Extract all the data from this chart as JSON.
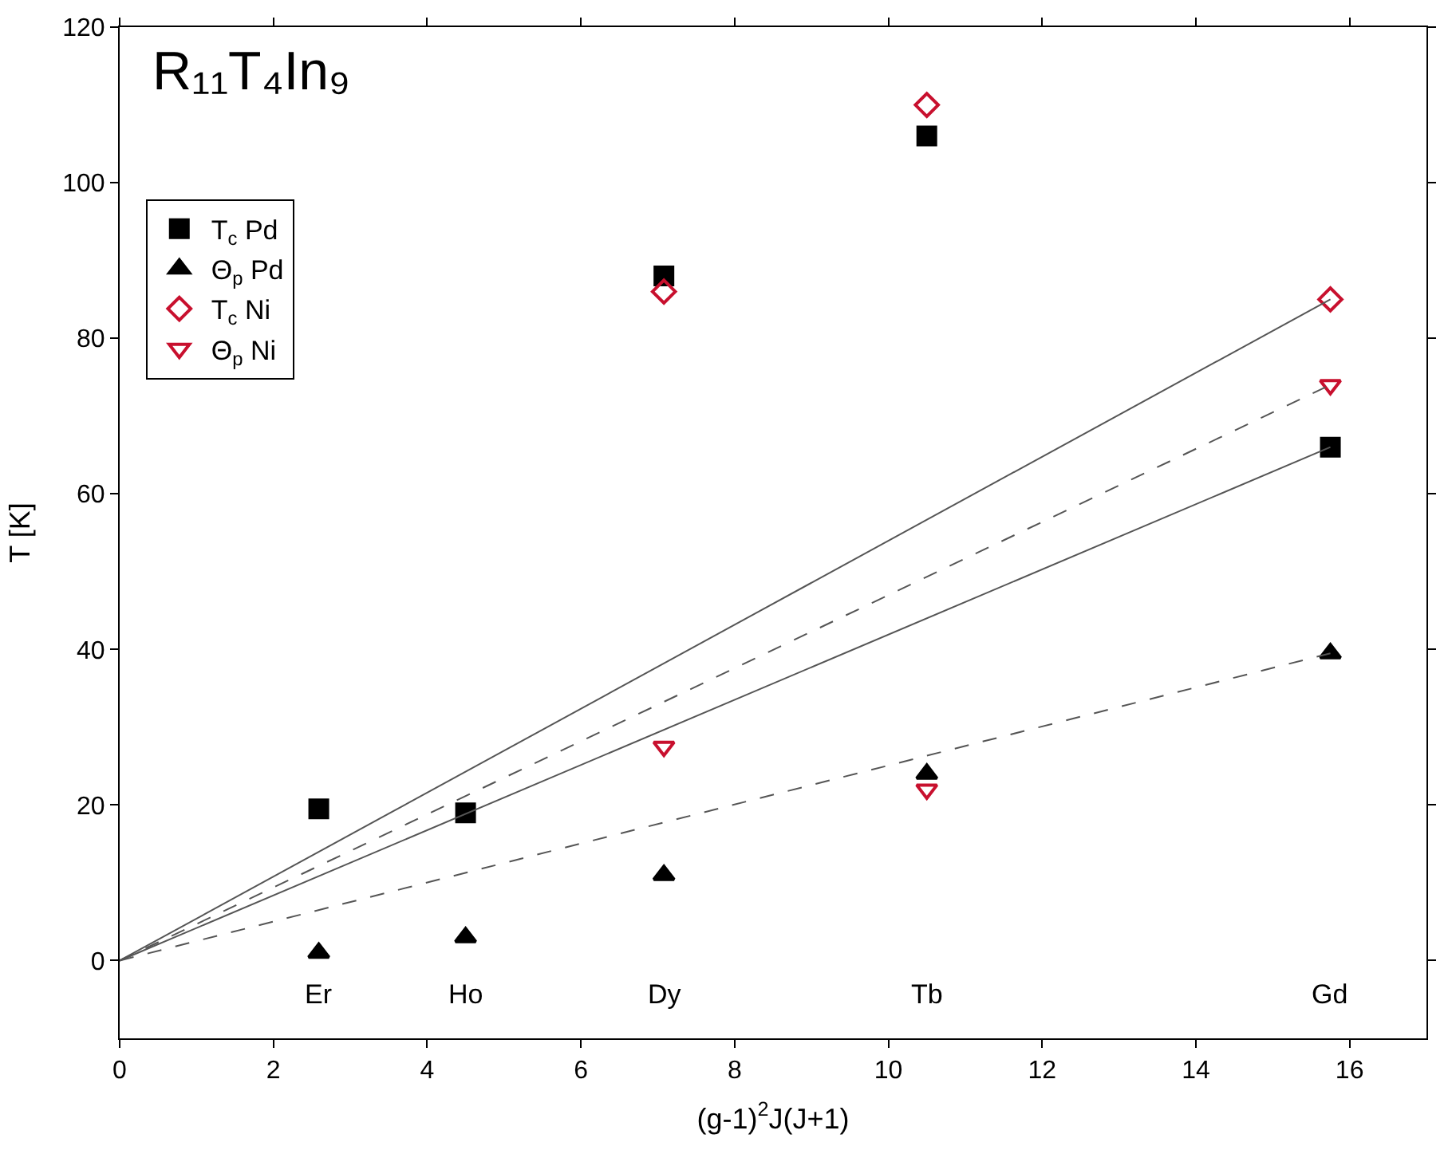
{
  "chart_data": {
    "type": "scatter",
    "title": "R₁₁T₄In₉",
    "xlabel": "(g-1)$^{2}$J(J+1)",
    "ylabel": "T [K]",
    "xlim": [
      0,
      17
    ],
    "ylim": [
      -10,
      120
    ],
    "xticks": [
      0,
      2,
      4,
      6,
      8,
      10,
      12,
      14,
      16
    ],
    "yticks": [
      0,
      20,
      40,
      60,
      80,
      100,
      120
    ],
    "legend": "top left",
    "series": [
      {
        "name": "T$_{c}$ Pd",
        "color": "#000000",
        "marker": "square",
        "x": [
          2.59,
          4.5,
          7.08,
          10.5,
          15.75
        ],
        "values": [
          19.5,
          19,
          88,
          106,
          66
        ]
      },
      {
        "name": "Θ$_{p}$ Pd",
        "color": "#000000",
        "marker": "triangle",
        "x": [
          2.59,
          4.5,
          7.08,
          10.5,
          15.75
        ],
        "values": [
          1,
          3,
          11,
          24,
          39.5
        ]
      },
      {
        "name": "T$_{c}$ Ni",
        "color": "#c8102e",
        "marker": "diamond",
        "x": [
          7.08,
          10.5,
          15.75
        ],
        "values": [
          86,
          110,
          85
        ]
      },
      {
        "name": "Θ$_{p}$ Ni",
        "color": "#c8102e",
        "marker": "triangle-down",
        "x": [
          7.08,
          10.5,
          15.75
        ],
        "values": [
          27.5,
          22,
          74
        ]
      },
      {
        "type": "line",
        "color": "#555555",
        "line_style": "solid",
        "x": [
          0,
          15.75
        ],
        "values": [
          0,
          85
        ]
      },
      {
        "type": "line",
        "color": "#555555",
        "line_style": "dashed",
        "x": [
          0,
          15.75
        ],
        "values": [
          0,
          74
        ]
      },
      {
        "type": "line",
        "color": "#555555",
        "line_style": "solid",
        "x": [
          0,
          15.75
        ],
        "values": [
          0,
          66
        ]
      },
      {
        "type": "line",
        "color": "#555555",
        "line_style": "dashed",
        "x": [
          0,
          15.75
        ],
        "values": [
          0,
          39.5
        ]
      }
    ],
    "annotations": [
      "Er",
      "Ho",
      "Dy",
      "Tb",
      "Gd"
    ]
  }
}
